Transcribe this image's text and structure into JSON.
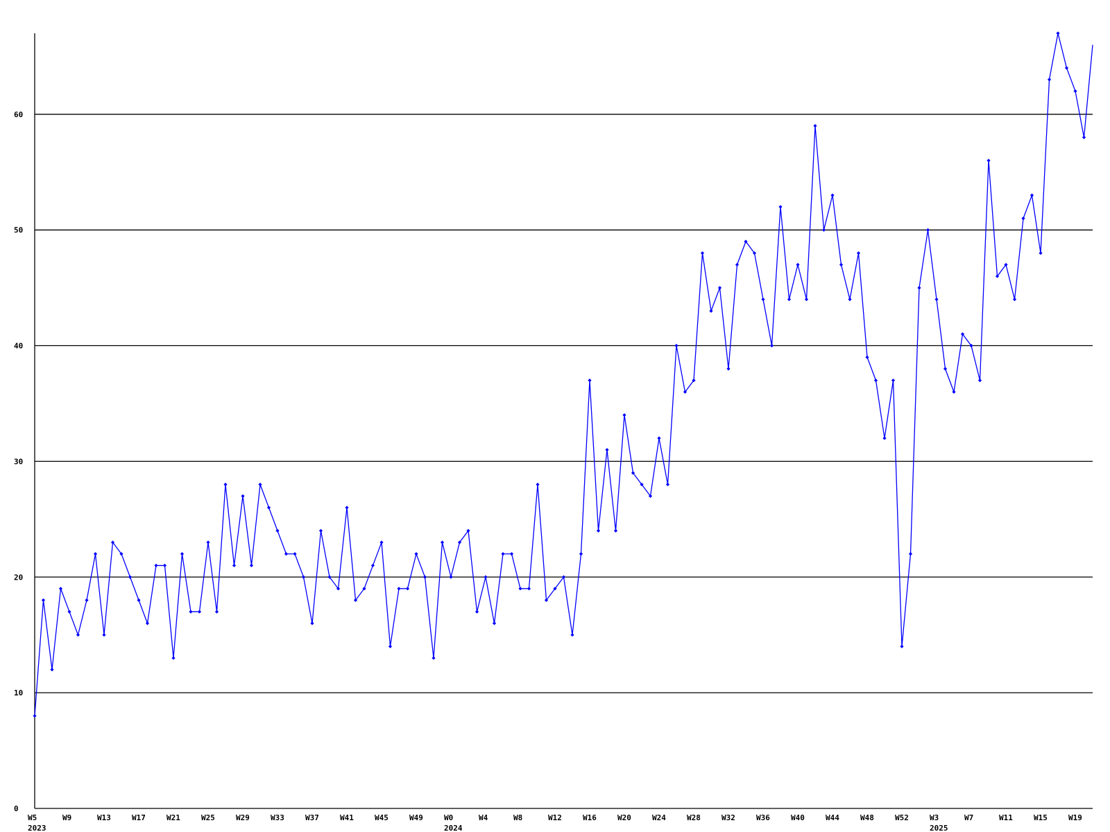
{
  "chart_data": {
    "type": "line",
    "grid": true,
    "line_color": "#0000ff",
    "ylim": [
      0,
      67
    ],
    "y_ticks": [
      0,
      10,
      20,
      30,
      40,
      50,
      60
    ],
    "x_ticks": [
      {
        "week": "W5",
        "year": "2023"
      },
      {
        "week": "W9",
        "year": ""
      },
      {
        "week": "W13",
        "year": ""
      },
      {
        "week": "W17",
        "year": ""
      },
      {
        "week": "W21",
        "year": ""
      },
      {
        "week": "W25",
        "year": ""
      },
      {
        "week": "W29",
        "year": ""
      },
      {
        "week": "W33",
        "year": ""
      },
      {
        "week": "W37",
        "year": ""
      },
      {
        "week": "W41",
        "year": ""
      },
      {
        "week": "W45",
        "year": ""
      },
      {
        "week": "W49",
        "year": ""
      },
      {
        "week": "W0",
        "year": "2024"
      },
      {
        "week": "W4",
        "year": ""
      },
      {
        "week": "W8",
        "year": ""
      },
      {
        "week": "W12",
        "year": ""
      },
      {
        "week": "W16",
        "year": ""
      },
      {
        "week": "W20",
        "year": ""
      },
      {
        "week": "W24",
        "year": ""
      },
      {
        "week": "W28",
        "year": ""
      },
      {
        "week": "W32",
        "year": ""
      },
      {
        "week": "W36",
        "year": ""
      },
      {
        "week": "W40",
        "year": ""
      },
      {
        "week": "W44",
        "year": ""
      },
      {
        "week": "W48",
        "year": ""
      },
      {
        "week": "W52",
        "year": ""
      },
      {
        "week": "W3",
        "year": "2025"
      },
      {
        "week": "W7",
        "year": ""
      },
      {
        "week": "W11",
        "year": ""
      },
      {
        "week": "W15",
        "year": ""
      },
      {
        "week": "W19",
        "year": ""
      }
    ],
    "values": [
      8,
      18,
      12,
      19,
      17,
      15,
      18,
      22,
      15,
      23,
      22,
      20,
      18,
      16,
      21,
      21,
      13,
      22,
      17,
      17,
      23,
      17,
      28,
      21,
      27,
      21,
      28,
      26,
      24,
      22,
      22,
      20,
      16,
      24,
      20,
      19,
      26,
      18,
      19,
      21,
      23,
      14,
      19,
      19,
      22,
      20,
      13,
      23,
      20,
      23,
      24,
      17,
      20,
      16,
      22,
      22,
      19,
      19,
      28,
      18,
      19,
      20,
      15,
      22,
      37,
      24,
      31,
      24,
      34,
      29,
      28,
      27,
      32,
      28,
      40,
      36,
      37,
      48,
      43,
      45,
      38,
      47,
      49,
      48,
      44,
      40,
      52,
      44,
      47,
      44,
      59,
      50,
      53,
      47,
      44,
      48,
      39,
      37,
      32,
      37,
      14,
      22,
      45,
      50,
      44,
      38,
      36,
      41,
      40,
      37,
      56,
      46,
      47,
      44,
      51,
      53,
      48,
      63,
      67,
      64,
      62,
      58,
      66
    ]
  }
}
